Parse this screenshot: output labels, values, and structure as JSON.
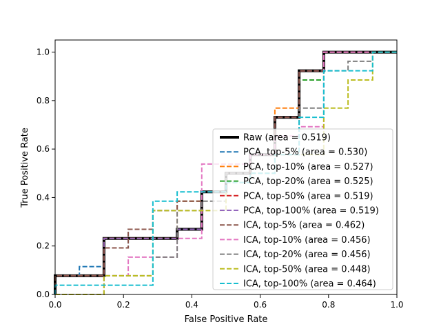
{
  "chart_data": {
    "type": "line",
    "title": "",
    "xlabel": "False Positive Rate",
    "ylabel": "True Positive Rate",
    "xlim": [
      0,
      1
    ],
    "ylim": [
      0,
      1.05
    ],
    "xticks": [
      "0.0",
      "0.2",
      "0.4",
      "0.6",
      "0.8",
      "1.0"
    ],
    "yticks": [
      "0.0",
      "0.2",
      "0.4",
      "0.6",
      "0.8",
      "1.0"
    ],
    "legend_position": "lower-right",
    "series": [
      {
        "name": "Raw (area = 0.519)",
        "color": "#000000",
        "dash": "solid",
        "width": "thick",
        "x": [
          0,
          0,
          0.143,
          0.143,
          0.357,
          0.357,
          0.429,
          0.429,
          0.5,
          0.5,
          0.571,
          0.571,
          0.643,
          0.643,
          0.714,
          0.714,
          0.786,
          0.786,
          1.0
        ],
        "y": [
          0,
          0.077,
          0.077,
          0.231,
          0.231,
          0.269,
          0.269,
          0.423,
          0.423,
          0.5,
          0.5,
          0.577,
          0.577,
          0.731,
          0.731,
          0.923,
          0.923,
          1.0,
          1.0
        ]
      },
      {
        "name": "PCA, top-5% (area = 0.530)",
        "color": "#1f77b4",
        "dash": "dashed",
        "x": [
          0,
          0,
          0.071,
          0.071,
          0.143,
          0.143,
          0.214,
          0.214,
          0.286,
          0.286,
          0.357,
          0.357,
          0.429,
          0.429,
          0.5,
          0.5,
          0.571,
          0.571,
          0.643,
          0.643,
          0.714,
          0.714,
          0.786,
          0.786,
          1.0
        ],
        "y": [
          0,
          0.077,
          0.077,
          0.115,
          0.115,
          0.192,
          0.192,
          0.269,
          0.269,
          0.346,
          0.346,
          0.385,
          0.385,
          0.423,
          0.423,
          0.5,
          0.5,
          0.577,
          0.577,
          0.731,
          0.731,
          0.923,
          0.923,
          1.0,
          1.0
        ]
      },
      {
        "name": "PCA, top-10% (area = 0.527)",
        "color": "#ff7f0e",
        "dash": "dashed",
        "x": [
          0,
          0,
          0.143,
          0.143,
          0.357,
          0.357,
          0.429,
          0.429,
          0.5,
          0.5,
          0.571,
          0.571,
          0.643,
          0.643,
          0.714,
          0.714,
          0.786,
          0.786,
          1.0
        ],
        "y": [
          0,
          0.077,
          0.077,
          0.231,
          0.231,
          0.385,
          0.385,
          0.423,
          0.423,
          0.5,
          0.5,
          0.577,
          0.577,
          0.769,
          0.769,
          0.923,
          0.923,
          1.0,
          1.0
        ]
      },
      {
        "name": "PCA, top-20% (area = 0.525)",
        "color": "#2ca02c",
        "dash": "dashed",
        "x": [
          0,
          0,
          0.143,
          0.143,
          0.357,
          0.357,
          0.429,
          0.429,
          0.5,
          0.5,
          0.571,
          0.571,
          0.643,
          0.643,
          0.714,
          0.714,
          0.786,
          0.786,
          1.0
        ],
        "y": [
          0,
          0.077,
          0.077,
          0.231,
          0.231,
          0.269,
          0.269,
          0.423,
          0.423,
          0.5,
          0.5,
          0.577,
          0.577,
          0.731,
          0.731,
          0.885,
          0.885,
          1.0,
          1.0
        ]
      },
      {
        "name": "PCA, top-50% (area = 0.519)",
        "color": "#d62728",
        "dash": "dashed",
        "x": [
          0,
          0,
          0.143,
          0.143,
          0.357,
          0.357,
          0.429,
          0.429,
          0.5,
          0.5,
          0.571,
          0.571,
          0.643,
          0.643,
          0.714,
          0.714,
          0.786,
          0.786,
          1.0
        ],
        "y": [
          0,
          0.077,
          0.077,
          0.231,
          0.231,
          0.269,
          0.269,
          0.423,
          0.423,
          0.5,
          0.5,
          0.577,
          0.577,
          0.731,
          0.731,
          0.923,
          0.923,
          1.0,
          1.0
        ]
      },
      {
        "name": "PCA, top-100% (area = 0.519)",
        "color": "#9467bd",
        "dash": "dashed",
        "x": [
          0,
          0,
          0.143,
          0.143,
          0.357,
          0.357,
          0.429,
          0.429,
          0.5,
          0.5,
          0.571,
          0.571,
          0.643,
          0.643,
          0.714,
          0.714,
          0.786,
          0.786,
          1.0
        ],
        "y": [
          0,
          0.077,
          0.077,
          0.231,
          0.231,
          0.269,
          0.269,
          0.423,
          0.423,
          0.5,
          0.5,
          0.577,
          0.577,
          0.731,
          0.731,
          0.923,
          0.923,
          1.0,
          1.0
        ]
      },
      {
        "name": "ICA, top-5% (area = 0.462)",
        "color": "#8c564b",
        "dash": "dashed",
        "x": [
          0,
          0,
          0.143,
          0.143,
          0.214,
          0.214,
          0.286,
          0.286,
          0.357,
          0.357,
          0.429,
          0.429,
          0.5,
          0.5,
          0.571,
          0.571,
          0.643,
          0.643,
          0.714,
          0.714,
          0.786,
          0.786,
          1.0
        ],
        "y": [
          0,
          0.077,
          0.077,
          0.192,
          0.192,
          0.269,
          0.269,
          0.346,
          0.346,
          0.385,
          0.385,
          0.423,
          0.423,
          0.5,
          0.5,
          0.577,
          0.577,
          0.731,
          0.731,
          0.923,
          0.923,
          1.0,
          1.0
        ]
      },
      {
        "name": "ICA, top-10% (area = 0.456)",
        "color": "#e377c2",
        "dash": "dashed",
        "x": [
          0,
          0,
          0.143,
          0.143,
          0.214,
          0.214,
          0.286,
          0.286,
          0.357,
          0.357,
          0.429,
          0.429,
          0.5,
          0.5,
          0.571,
          0.571,
          0.643,
          0.643,
          0.714,
          0.714,
          0.786,
          0.786,
          1.0
        ],
        "y": [
          0,
          0.0,
          0.0,
          0.077,
          0.077,
          0.154,
          0.154,
          0.154,
          0.154,
          0.231,
          0.231,
          0.538,
          0.538,
          0.538,
          0.538,
          0.577,
          0.577,
          0.654,
          0.654,
          0.692,
          0.692,
          1.0,
          1.0
        ]
      },
      {
        "name": "ICA, top-20% (area = 0.456)",
        "color": "#7f7f7f",
        "dash": "dashed",
        "x": [
          0,
          0,
          0.143,
          0.143,
          0.214,
          0.214,
          0.286,
          0.286,
          0.357,
          0.357,
          0.429,
          0.429,
          0.5,
          0.5,
          0.571,
          0.571,
          0.643,
          0.643,
          0.714,
          0.714,
          0.786,
          0.786,
          0.857,
          0.857,
          0.929,
          0.929,
          1.0
        ],
        "y": [
          0,
          0.0,
          0.0,
          0.077,
          0.077,
          0.077,
          0.077,
          0.154,
          0.154,
          0.346,
          0.346,
          0.385,
          0.385,
          0.5,
          0.5,
          0.5,
          0.5,
          0.577,
          0.577,
          0.769,
          0.769,
          0.923,
          0.923,
          0.962,
          0.962,
          1.0,
          1.0
        ]
      },
      {
        "name": "ICA, top-50% (area = 0.448)",
        "color": "#bcbd22",
        "dash": "dashed",
        "x": [
          0,
          0,
          0.143,
          0.143,
          0.286,
          0.286,
          0.357,
          0.357,
          0.429,
          0.429,
          0.5,
          0.5,
          0.571,
          0.571,
          0.643,
          0.643,
          0.714,
          0.714,
          0.786,
          0.786,
          0.857,
          0.857,
          0.929,
          0.929,
          1.0
        ],
        "y": [
          0,
          0.0,
          0.0,
          0.077,
          0.077,
          0.346,
          0.346,
          0.346,
          0.346,
          0.346,
          0.346,
          0.462,
          0.462,
          0.5,
          0.5,
          0.577,
          0.577,
          0.577,
          0.577,
          0.769,
          0.769,
          0.885,
          0.885,
          1.0,
          1.0
        ]
      },
      {
        "name": "ICA, top-100% (area = 0.464)",
        "color": "#17becf",
        "dash": "dashed",
        "x": [
          0,
          0,
          0.143,
          0.143,
          0.214,
          0.214,
          0.286,
          0.286,
          0.357,
          0.357,
          0.429,
          0.429,
          0.5,
          0.5,
          0.571,
          0.571,
          0.643,
          0.643,
          0.714,
          0.714,
          0.786,
          0.786,
          0.929,
          0.929,
          1.0
        ],
        "y": [
          0,
          0.038,
          0.038,
          0.038,
          0.038,
          0.038,
          0.038,
          0.385,
          0.385,
          0.423,
          0.423,
          0.423,
          0.423,
          0.462,
          0.462,
          0.5,
          0.5,
          0.577,
          0.577,
          0.731,
          0.731,
          0.923,
          0.923,
          1.0,
          1.0
        ]
      }
    ]
  }
}
